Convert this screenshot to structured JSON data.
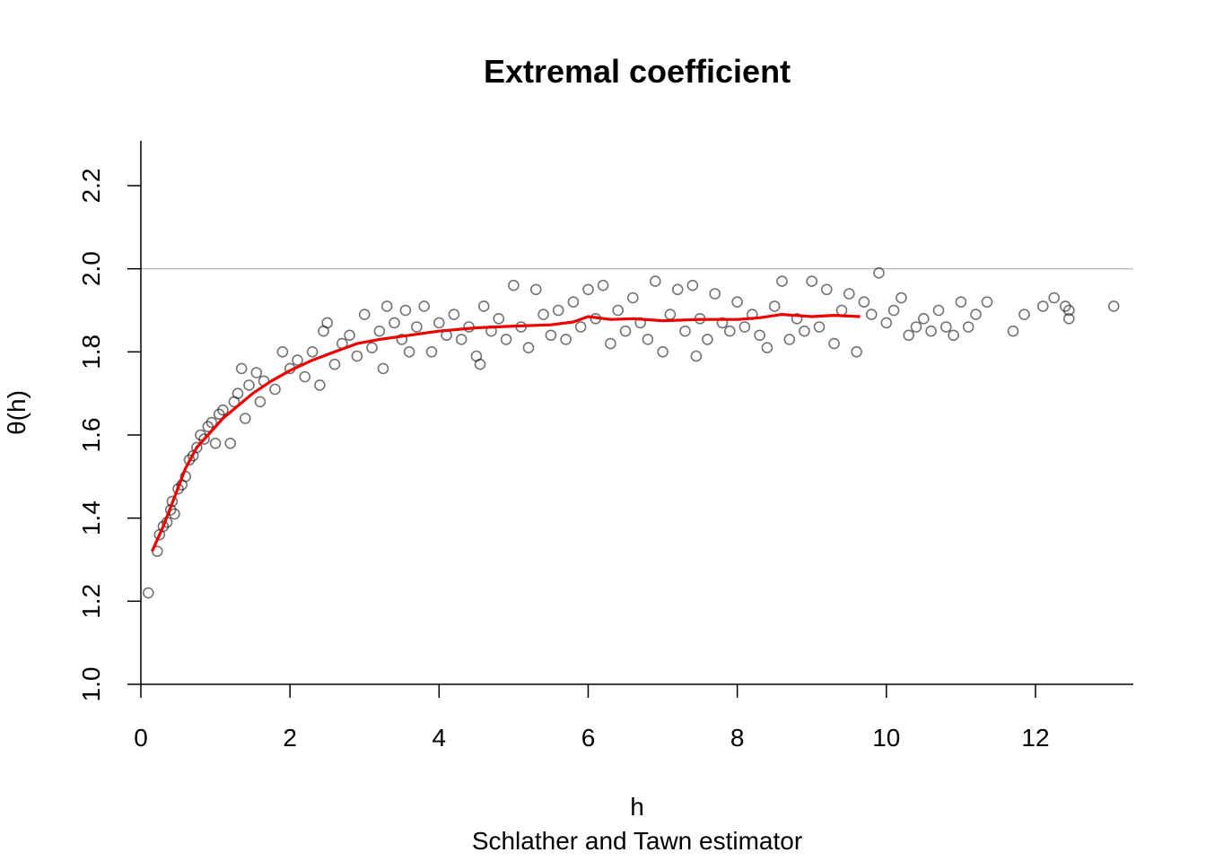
{
  "chart_data": {
    "type": "scatter",
    "title": "Extremal coefficient",
    "xlabel": "h",
    "ylabel": "θ(h)",
    "subtitle": "Schlather and Tawn estimator",
    "xlim": [
      0,
      13.3
    ],
    "ylim": [
      1.0,
      2.3
    ],
    "xticks": [
      0,
      2,
      4,
      6,
      8,
      10,
      12
    ],
    "yticks": [
      1.0,
      1.2,
      1.4,
      1.6,
      1.8,
      2.0,
      2.2
    ],
    "xtick_labels": [
      "0",
      "2",
      "4",
      "6",
      "8",
      "10",
      "12"
    ],
    "ytick_labels": [
      "1.0",
      "1.2",
      "1.4",
      "1.6",
      "1.8",
      "2.0",
      "2.2"
    ],
    "reference_line": {
      "y": 2.0,
      "color": "#bebebe"
    },
    "point_color": "#000000",
    "smooth_color": "#ee0000",
    "series": [
      {
        "type": "line",
        "values": [
          [
            0.15,
            1.32
          ],
          [
            0.3,
            1.38
          ],
          [
            0.45,
            1.45
          ],
          [
            0.6,
            1.52
          ],
          [
            0.75,
            1.57
          ],
          [
            0.9,
            1.6
          ],
          [
            1.1,
            1.64
          ],
          [
            1.3,
            1.67
          ],
          [
            1.5,
            1.7
          ],
          [
            1.75,
            1.73
          ],
          [
            2.0,
            1.755
          ],
          [
            2.3,
            1.78
          ],
          [
            2.6,
            1.8
          ],
          [
            2.9,
            1.82
          ],
          [
            3.2,
            1.83
          ],
          [
            3.6,
            1.84
          ],
          [
            4.0,
            1.85
          ],
          [
            4.5,
            1.858
          ],
          [
            5.0,
            1.862
          ],
          [
            5.5,
            1.865
          ],
          [
            5.8,
            1.872
          ],
          [
            6.0,
            1.885
          ],
          [
            6.3,
            1.878
          ],
          [
            6.6,
            1.88
          ],
          [
            7.0,
            1.875
          ],
          [
            7.5,
            1.878
          ],
          [
            8.0,
            1.878
          ],
          [
            8.3,
            1.882
          ],
          [
            8.6,
            1.89
          ],
          [
            9.0,
            1.885
          ],
          [
            9.3,
            1.888
          ],
          [
            9.65,
            1.885
          ]
        ]
      },
      {
        "type": "scatter",
        "values": [
          [
            0.1,
            1.22
          ],
          [
            0.22,
            1.32
          ],
          [
            0.25,
            1.36
          ],
          [
            0.3,
            1.38
          ],
          [
            0.35,
            1.39
          ],
          [
            0.4,
            1.42
          ],
          [
            0.42,
            1.44
          ],
          [
            0.45,
            1.41
          ],
          [
            0.5,
            1.47
          ],
          [
            0.55,
            1.48
          ],
          [
            0.6,
            1.5
          ],
          [
            0.65,
            1.54
          ],
          [
            0.7,
            1.55
          ],
          [
            0.75,
            1.57
          ],
          [
            0.8,
            1.6
          ],
          [
            0.85,
            1.59
          ],
          [
            0.9,
            1.62
          ],
          [
            0.95,
            1.63
          ],
          [
            1.0,
            1.58
          ],
          [
            1.05,
            1.65
          ],
          [
            1.1,
            1.66
          ],
          [
            1.2,
            1.58
          ],
          [
            1.25,
            1.68
          ],
          [
            1.3,
            1.7
          ],
          [
            1.35,
            1.76
          ],
          [
            1.4,
            1.64
          ],
          [
            1.45,
            1.72
          ],
          [
            1.55,
            1.75
          ],
          [
            1.6,
            1.68
          ],
          [
            1.65,
            1.73
          ],
          [
            1.8,
            1.71
          ],
          [
            1.9,
            1.8
          ],
          [
            2.0,
            1.76
          ],
          [
            2.1,
            1.78
          ],
          [
            2.2,
            1.74
          ],
          [
            2.3,
            1.8
          ],
          [
            2.4,
            1.72
          ],
          [
            2.45,
            1.85
          ],
          [
            2.5,
            1.87
          ],
          [
            2.6,
            1.77
          ],
          [
            2.7,
            1.82
          ],
          [
            2.8,
            1.84
          ],
          [
            2.9,
            1.79
          ],
          [
            3.0,
            1.89
          ],
          [
            3.1,
            1.81
          ],
          [
            3.2,
            1.85
          ],
          [
            3.25,
            1.76
          ],
          [
            3.3,
            1.91
          ],
          [
            3.4,
            1.87
          ],
          [
            3.5,
            1.83
          ],
          [
            3.55,
            1.9
          ],
          [
            3.6,
            1.8
          ],
          [
            3.7,
            1.86
          ],
          [
            3.8,
            1.91
          ],
          [
            3.9,
            1.8
          ],
          [
            4.0,
            1.87
          ],
          [
            4.1,
            1.84
          ],
          [
            4.2,
            1.89
          ],
          [
            4.3,
            1.83
          ],
          [
            4.4,
            1.86
          ],
          [
            4.5,
            1.79
          ],
          [
            4.55,
            1.77
          ],
          [
            4.6,
            1.91
          ],
          [
            4.7,
            1.85
          ],
          [
            4.8,
            1.88
          ],
          [
            4.9,
            1.83
          ],
          [
            5.0,
            1.96
          ],
          [
            5.1,
            1.86
          ],
          [
            5.2,
            1.81
          ],
          [
            5.3,
            1.95
          ],
          [
            5.4,
            1.89
          ],
          [
            5.5,
            1.84
          ],
          [
            5.6,
            1.9
          ],
          [
            5.7,
            1.83
          ],
          [
            5.8,
            1.92
          ],
          [
            5.9,
            1.86
          ],
          [
            6.0,
            1.95
          ],
          [
            6.1,
            1.88
          ],
          [
            6.2,
            1.96
          ],
          [
            6.3,
            1.82
          ],
          [
            6.4,
            1.9
          ],
          [
            6.5,
            1.85
          ],
          [
            6.6,
            1.93
          ],
          [
            6.7,
            1.87
          ],
          [
            6.8,
            1.83
          ],
          [
            6.9,
            1.97
          ],
          [
            7.0,
            1.8
          ],
          [
            7.1,
            1.89
          ],
          [
            7.2,
            1.95
          ],
          [
            7.3,
            1.85
          ],
          [
            7.4,
            1.96
          ],
          [
            7.45,
            1.79
          ],
          [
            7.5,
            1.88
          ],
          [
            7.6,
            1.83
          ],
          [
            7.7,
            1.94
          ],
          [
            7.8,
            1.87
          ],
          [
            7.9,
            1.85
          ],
          [
            8.0,
            1.92
          ],
          [
            8.1,
            1.86
          ],
          [
            8.2,
            1.89
          ],
          [
            8.3,
            1.84
          ],
          [
            8.4,
            1.81
          ],
          [
            8.5,
            1.91
          ],
          [
            8.6,
            1.97
          ],
          [
            8.7,
            1.83
          ],
          [
            8.8,
            1.88
          ],
          [
            8.9,
            1.85
          ],
          [
            9.0,
            1.97
          ],
          [
            9.1,
            1.86
          ],
          [
            9.2,
            1.95
          ],
          [
            9.3,
            1.82
          ],
          [
            9.4,
            1.9
          ],
          [
            9.5,
            1.94
          ],
          [
            9.6,
            1.8
          ],
          [
            9.7,
            1.92
          ],
          [
            9.8,
            1.89
          ],
          [
            9.9,
            1.99
          ],
          [
            10.0,
            1.87
          ],
          [
            10.1,
            1.9
          ],
          [
            10.2,
            1.93
          ],
          [
            10.3,
            1.84
          ],
          [
            10.4,
            1.86
          ],
          [
            10.5,
            1.88
          ],
          [
            10.6,
            1.85
          ],
          [
            10.7,
            1.9
          ],
          [
            10.8,
            1.86
          ],
          [
            10.9,
            1.84
          ],
          [
            11.0,
            1.92
          ],
          [
            11.1,
            1.86
          ],
          [
            11.2,
            1.89
          ],
          [
            11.35,
            1.92
          ],
          [
            11.7,
            1.85
          ],
          [
            11.85,
            1.89
          ],
          [
            12.1,
            1.91
          ],
          [
            12.25,
            1.93
          ],
          [
            12.4,
            1.91
          ],
          [
            12.45,
            1.9
          ],
          [
            12.45,
            1.88
          ],
          [
            13.05,
            1.91
          ]
        ]
      }
    ]
  }
}
